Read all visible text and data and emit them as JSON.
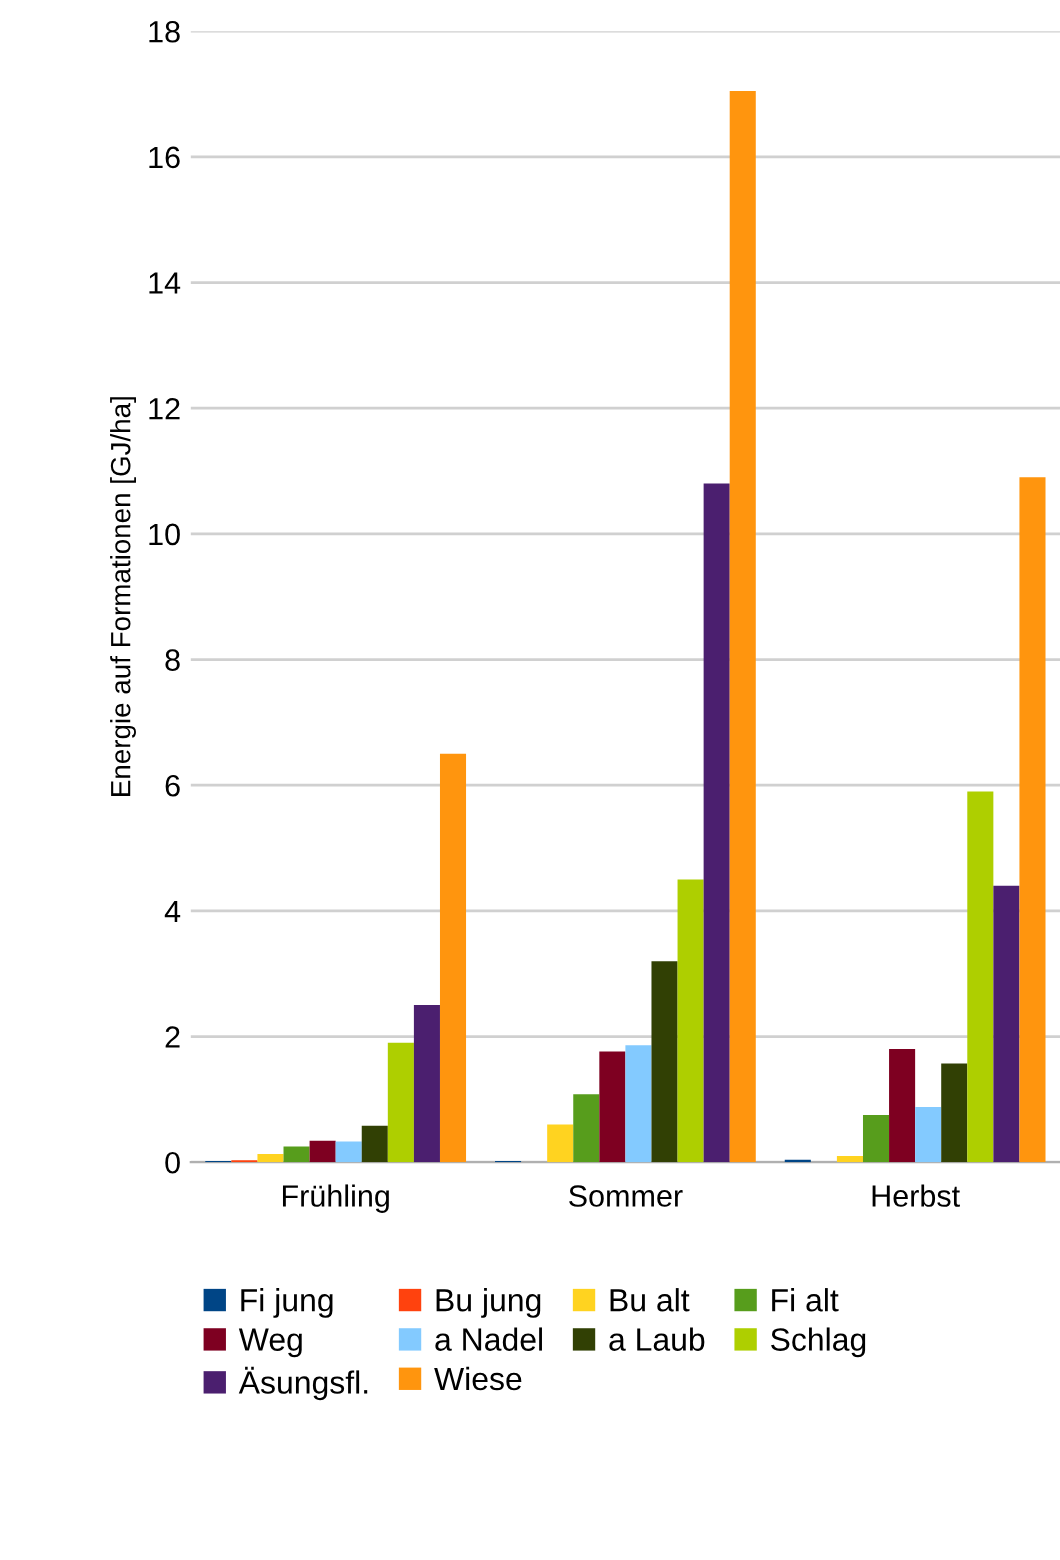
{
  "chart_data": {
    "type": "bar",
    "ylabel": "Energie auf Formationen [GJ/ha]",
    "categories": [
      "Frühling",
      "Sommer",
      "Herbst"
    ],
    "series": [
      {
        "name": "Fi jung",
        "color": "#004586",
        "values": [
          0.02,
          0.02,
          0.04
        ]
      },
      {
        "name": "Bu jung",
        "color": "#ff420e",
        "values": [
          0.03,
          0,
          0
        ]
      },
      {
        "name": "Bu alt",
        "color": "#ffd320",
        "values": [
          0.13,
          0.6,
          0.1
        ]
      },
      {
        "name": "Fi alt",
        "color": "#579d1c",
        "values": [
          0.25,
          1.08,
          0.75
        ]
      },
      {
        "name": "Weg",
        "color": "#7e0021",
        "values": [
          0.34,
          1.76,
          1.8
        ]
      },
      {
        "name": "a Nadel",
        "color": "#83caff",
        "values": [
          0.33,
          1.86,
          0.88
        ]
      },
      {
        "name": "a Laub",
        "color": "#314004",
        "values": [
          0.58,
          3.2,
          1.57
        ]
      },
      {
        "name": "Schlag",
        "color": "#aecf00",
        "values": [
          1.9,
          4.5,
          5.9
        ]
      },
      {
        "name": "Äsungsfl.",
        "color": "#4b1f6f",
        "values": [
          2.5,
          10.8,
          4.4
        ]
      },
      {
        "name": "Wiese",
        "color": "#ff950e",
        "values": [
          6.5,
          17.05,
          10.9
        ]
      }
    ],
    "ylim": [
      0,
      18
    ],
    "yticks": [
      0,
      2,
      4,
      6,
      8,
      10,
      12,
      14,
      16,
      18
    ],
    "grid": "y",
    "legend": "bottom"
  }
}
